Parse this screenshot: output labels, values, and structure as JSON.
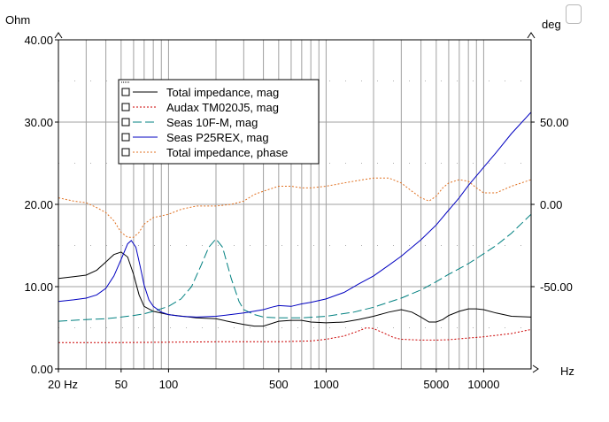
{
  "chart_data": {
    "type": "line",
    "title": "",
    "x_scale": "log",
    "x_unit": "Hz",
    "left_unit": "Ohm",
    "right_unit": "deg",
    "x_ticks": [
      {
        "value": 20,
        "label": "20 Hz"
      },
      {
        "value": 50,
        "label": "50"
      },
      {
        "value": 100,
        "label": "100"
      },
      {
        "value": 500,
        "label": "500"
      },
      {
        "value": 1000,
        "label": "1000"
      },
      {
        "value": 5000,
        "label": "5000"
      },
      {
        "value": 10000,
        "label": "10000"
      }
    ],
    "xlim": [
      20,
      20000
    ],
    "ylim_left": [
      0,
      40
    ],
    "left_ticks": [
      "0.00",
      "10.00",
      "20.00",
      "30.00",
      "40.00"
    ],
    "ylim_right": [
      -100,
      100
    ],
    "right_ticks": [
      "-50.00",
      "0.00",
      "50.00"
    ],
    "grid": true,
    "legend_position": "top-left",
    "series": [
      {
        "name": "Total impedance, mag",
        "axis": "left",
        "color": "#000000",
        "dash": "solid",
        "points": [
          [
            20,
            11
          ],
          [
            25,
            11.2
          ],
          [
            30,
            11.4
          ],
          [
            35,
            12
          ],
          [
            40,
            13
          ],
          [
            45,
            13.9
          ],
          [
            50,
            14.2
          ],
          [
            55,
            13.6
          ],
          [
            60,
            11.5
          ],
          [
            65,
            9
          ],
          [
            70,
            7.6
          ],
          [
            80,
            7
          ],
          [
            100,
            6.6
          ],
          [
            150,
            6.2
          ],
          [
            200,
            6.1
          ],
          [
            250,
            5.7
          ],
          [
            300,
            5.4
          ],
          [
            350,
            5.2
          ],
          [
            400,
            5.2
          ],
          [
            500,
            5.8
          ],
          [
            600,
            5.9
          ],
          [
            700,
            5.9
          ],
          [
            800,
            5.7
          ],
          [
            1000,
            5.6
          ],
          [
            1300,
            5.7
          ],
          [
            1600,
            6
          ],
          [
            2000,
            6.4
          ],
          [
            2500,
            6.9
          ],
          [
            3000,
            7.2
          ],
          [
            3500,
            6.9
          ],
          [
            4000,
            6.3
          ],
          [
            4500,
            5.7
          ],
          [
            5000,
            5.7
          ],
          [
            5500,
            6
          ],
          [
            6000,
            6.5
          ],
          [
            7000,
            7
          ],
          [
            8000,
            7.3
          ],
          [
            9000,
            7.3
          ],
          [
            10000,
            7.2
          ],
          [
            12000,
            6.8
          ],
          [
            15000,
            6.4
          ],
          [
            20000,
            6.3
          ]
        ]
      },
      {
        "name": "Audax TM020J5, mag",
        "axis": "left",
        "color": "#cc0000",
        "dash": "dotted",
        "points": [
          [
            20,
            3.2
          ],
          [
            50,
            3.2
          ],
          [
            100,
            3.25
          ],
          [
            200,
            3.3
          ],
          [
            500,
            3.3
          ],
          [
            800,
            3.4
          ],
          [
            1000,
            3.6
          ],
          [
            1300,
            4
          ],
          [
            1600,
            4.6
          ],
          [
            1800,
            5
          ],
          [
            2000,
            4.9
          ],
          [
            2300,
            4.4
          ],
          [
            2700,
            3.8
          ],
          [
            3000,
            3.6
          ],
          [
            4000,
            3.5
          ],
          [
            5000,
            3.5
          ],
          [
            6000,
            3.55
          ],
          [
            8000,
            3.75
          ],
          [
            10000,
            3.9
          ],
          [
            15000,
            4.3
          ],
          [
            20000,
            4.8
          ]
        ]
      },
      {
        "name": "Seas 10F-M, mag",
        "axis": "left",
        "color": "#008080",
        "dash": "dashed",
        "points": [
          [
            20,
            5.8
          ],
          [
            30,
            6
          ],
          [
            40,
            6.1
          ],
          [
            50,
            6.3
          ],
          [
            60,
            6.5
          ],
          [
            70,
            6.7
          ],
          [
            80,
            7
          ],
          [
            100,
            7.6
          ],
          [
            120,
            8.5
          ],
          [
            140,
            10
          ],
          [
            160,
            12.5
          ],
          [
            180,
            14.8
          ],
          [
            200,
            15.8
          ],
          [
            220,
            14.8
          ],
          [
            250,
            11
          ],
          [
            280,
            8.2
          ],
          [
            300,
            7.2
          ],
          [
            350,
            6.6
          ],
          [
            400,
            6.3
          ],
          [
            500,
            6.2
          ],
          [
            700,
            6.2
          ],
          [
            1000,
            6.4
          ],
          [
            1500,
            6.9
          ],
          [
            2000,
            7.5
          ],
          [
            3000,
            8.6
          ],
          [
            4000,
            9.6
          ],
          [
            5000,
            10.6
          ],
          [
            6000,
            11.5
          ],
          [
            8000,
            12.8
          ],
          [
            10000,
            14
          ],
          [
            12000,
            15
          ],
          [
            15000,
            16.5
          ],
          [
            20000,
            18.8
          ]
        ]
      },
      {
        "name": "Seas P25REX, mag",
        "axis": "left",
        "color": "#0000c0",
        "dash": "solid",
        "points": [
          [
            20,
            8.2
          ],
          [
            25,
            8.4
          ],
          [
            30,
            8.6
          ],
          [
            35,
            9
          ],
          [
            40,
            9.8
          ],
          [
            45,
            11.3
          ],
          [
            50,
            13.3
          ],
          [
            55,
            15.2
          ],
          [
            58,
            15.6
          ],
          [
            62,
            14.8
          ],
          [
            66,
            12.5
          ],
          [
            70,
            10.2
          ],
          [
            75,
            8.4
          ],
          [
            80,
            7.6
          ],
          [
            90,
            6.9
          ],
          [
            100,
            6.6
          ],
          [
            120,
            6.4
          ],
          [
            150,
            6.3
          ],
          [
            200,
            6.4
          ],
          [
            300,
            6.8
          ],
          [
            400,
            7.2
          ],
          [
            450,
            7.5
          ],
          [
            500,
            7.7
          ],
          [
            600,
            7.6
          ],
          [
            700,
            7.9
          ],
          [
            800,
            8.1
          ],
          [
            1000,
            8.5
          ],
          [
            1300,
            9.3
          ],
          [
            1600,
            10.3
          ],
          [
            2000,
            11.3
          ],
          [
            2500,
            12.6
          ],
          [
            3000,
            13.7
          ],
          [
            4000,
            15.7
          ],
          [
            5000,
            17.5
          ],
          [
            6000,
            19.3
          ],
          [
            7000,
            20.8
          ],
          [
            8000,
            22.3
          ],
          [
            10000,
            24.5
          ],
          [
            12000,
            26.3
          ],
          [
            15000,
            28.6
          ],
          [
            20000,
            31.2
          ]
        ]
      },
      {
        "name": "Total impedance, phase",
        "axis": "right",
        "color": "#e07020",
        "dash": "dotted",
        "points": [
          [
            20,
            4
          ],
          [
            25,
            2
          ],
          [
            30,
            1
          ],
          [
            35,
            -2
          ],
          [
            40,
            -5
          ],
          [
            45,
            -10
          ],
          [
            50,
            -17
          ],
          [
            55,
            -20
          ],
          [
            60,
            -20
          ],
          [
            65,
            -17
          ],
          [
            70,
            -12
          ],
          [
            80,
            -8
          ],
          [
            90,
            -7
          ],
          [
            100,
            -6
          ],
          [
            120,
            -3
          ],
          [
            150,
            -1
          ],
          [
            200,
            -1
          ],
          [
            250,
            0
          ],
          [
            300,
            2
          ],
          [
            350,
            6
          ],
          [
            400,
            8
          ],
          [
            500,
            11
          ],
          [
            600,
            11
          ],
          [
            700,
            10
          ],
          [
            800,
            10
          ],
          [
            1000,
            11
          ],
          [
            1300,
            13
          ],
          [
            1600,
            14.5
          ],
          [
            2000,
            16
          ],
          [
            2500,
            16
          ],
          [
            3000,
            13
          ],
          [
            3500,
            8
          ],
          [
            4000,
            4
          ],
          [
            4500,
            2
          ],
          [
            5000,
            5
          ],
          [
            5500,
            10
          ],
          [
            6000,
            13
          ],
          [
            7000,
            15
          ],
          [
            8000,
            14
          ],
          [
            9000,
            10
          ],
          [
            10000,
            7
          ],
          [
            12000,
            7
          ],
          [
            15000,
            11
          ],
          [
            20000,
            15
          ]
        ]
      }
    ]
  }
}
